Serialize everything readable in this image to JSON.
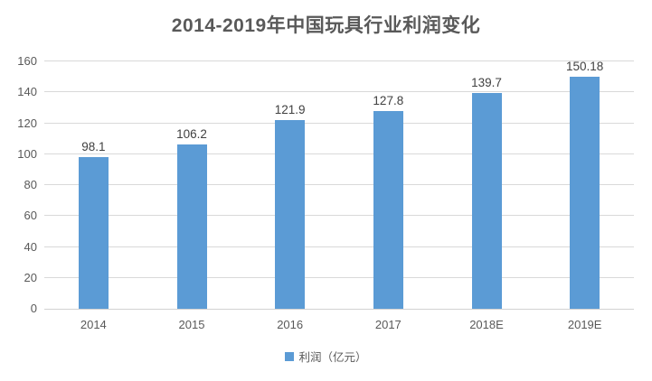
{
  "chart_data": {
    "type": "bar",
    "title": "2014-2019年中国玩具行业利润变化",
    "categories": [
      "2014",
      "2015",
      "2016",
      "2017",
      "2018E",
      "2019E"
    ],
    "series": [
      {
        "name": "利润（亿元）",
        "values": [
          98.1,
          106.2,
          121.9,
          127.8,
          139.7,
          150.18
        ]
      }
    ],
    "data_labels": [
      "98.1",
      "106.2",
      "121.9",
      "127.8",
      "139.7",
      "150.18"
    ],
    "ylim": [
      0,
      160
    ],
    "yticks": [
      0,
      20,
      40,
      60,
      80,
      100,
      120,
      140,
      160
    ],
    "grid": true,
    "legend_position": "bottom",
    "legend_label": "利润（亿元）",
    "colors": {
      "bar": "#5B9BD5",
      "title": "#595959",
      "data_label": "#404040",
      "axis_label": "#595959",
      "gridline": "#D9D9D9",
      "background": "#FFFFFF"
    }
  }
}
